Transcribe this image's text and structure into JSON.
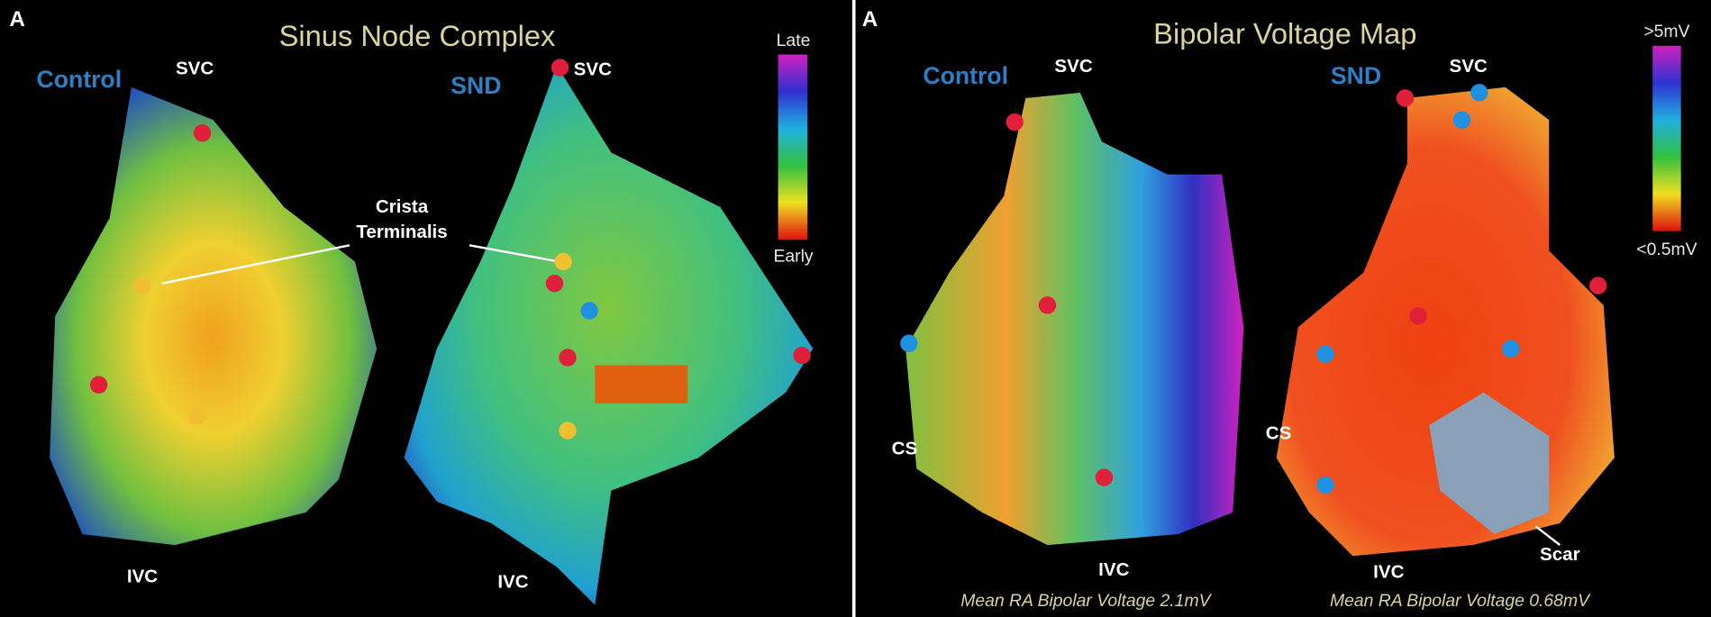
{
  "panels": [
    {
      "label": "A",
      "title": "Sinus Node Complex",
      "groups": [
        "Control",
        "SND"
      ],
      "labels": {
        "svc_control": "SVC",
        "svc_snd": "SVC",
        "crista_line1": "Crista",
        "crista_line2": "Terminalis",
        "ivc_control": "IVC",
        "ivc_snd": "IVC"
      },
      "scale": {
        "top": "Late",
        "bottom": "Early"
      }
    },
    {
      "label": "A",
      "title": "Bipolar Voltage Map",
      "groups": [
        "Control",
        "SND"
      ],
      "labels": {
        "svc_control": "SVC",
        "svc_snd": "SVC",
        "cs_control": "CS",
        "cs_snd": "CS",
        "ivc_control": "IVC",
        "ivc_snd": "IVC",
        "scar": "Scar"
      },
      "scale": {
        "top": ">5mV",
        "bottom": "<0.5mV"
      },
      "captions": [
        "Mean RA Bipolar Voltage 2.1mV",
        "Mean RA Bipolar Voltage 0.68mV"
      ]
    }
  ]
}
